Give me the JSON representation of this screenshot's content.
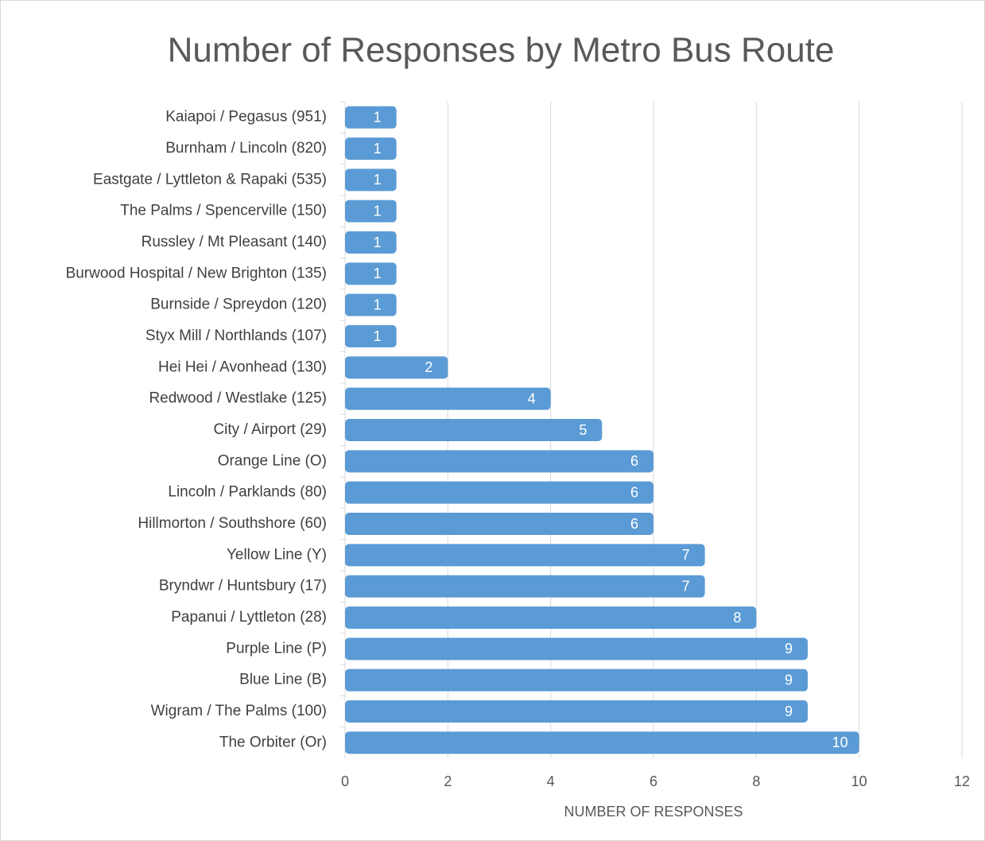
{
  "chart_data": {
    "type": "bar",
    "orientation": "horizontal",
    "title": "Number of Responses by Metro Bus Route",
    "x_label": "NUMBER OF RESPONSES",
    "categories": [
      "Kaiapoi / Pegasus (951)",
      "Burnham / Lincoln (820)",
      "Eastgate / Lyttleton & Rapaki (535)",
      "The Palms / Spencerville (150)",
      "Russley  / Mt Pleasant (140)",
      "Burwood Hospital / New Brighton (135)",
      "Burnside / Spreydon (120)",
      "Styx Mill / Northlands (107)",
      "Hei Hei / Avonhead (130)",
      "Redwood / Westlake (125)",
      "City / Airport (29)",
      "Orange Line (O)",
      "Lincoln / Parklands (80)",
      "Hillmorton / Southshore (60)",
      "Yellow Line (Y)",
      "Bryndwr / Huntsbury (17)",
      "Papanui / Lyttleton (28)",
      "Purple Line (P)",
      "Blue Line (B)",
      "Wigram / The Palms (100)",
      "The Orbiter (Or)"
    ],
    "values": [
      1,
      1,
      1,
      1,
      1,
      1,
      1,
      1,
      2,
      4,
      5,
      6,
      6,
      6,
      7,
      7,
      8,
      9,
      9,
      9,
      10
    ],
    "color": "#5b9bd5",
    "xlim": [
      0,
      12
    ],
    "xticks": [
      0,
      2,
      4,
      6,
      8,
      10,
      12
    ],
    "grid": true
  }
}
